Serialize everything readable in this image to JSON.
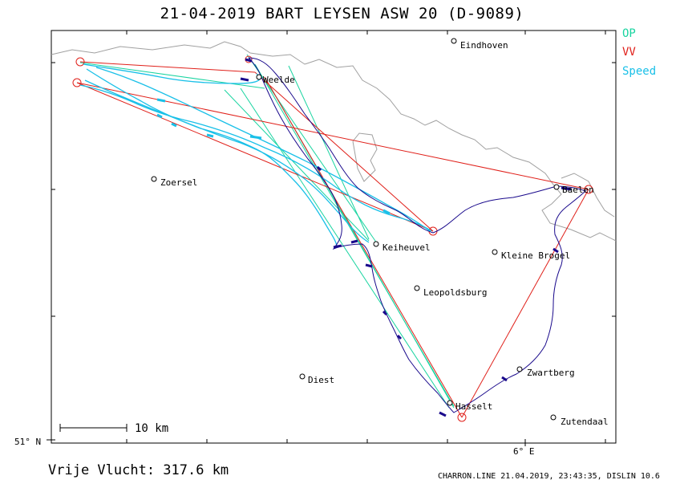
{
  "title": "21-04-2019   BART LEYSEN   ASW 20 (D-9089)",
  "legend": {
    "op": "OP",
    "vv": "VV",
    "speed": "Speed",
    "colors": {
      "op": "#19d4a0",
      "vv": "#e0201a",
      "speed": "#1ac0e8",
      "track": "#1a0a8c",
      "border": "#a0a0a0"
    }
  },
  "axes": {
    "lat_label": "51° N",
    "lon_label": "6° E"
  },
  "scale": {
    "label": "10 km"
  },
  "distance": "Vrije Vlucht:  317.6 km",
  "footer": "CHARRON.LINE 21.04.2019, 23:43:35, DISLIN 10.6",
  "places": [
    {
      "name": "Eindhoven"
    },
    {
      "name": "Weelde"
    },
    {
      "name": "Zoersel"
    },
    {
      "name": "Baelen"
    },
    {
      "name": "Keiheuvel"
    },
    {
      "name": "Kleine Brogel"
    },
    {
      "name": "Leopoldsburg"
    },
    {
      "name": "Zwartberg"
    },
    {
      "name": "Diest"
    },
    {
      "name": "Hasselt"
    },
    {
      "name": "Zutendaal"
    }
  ]
}
